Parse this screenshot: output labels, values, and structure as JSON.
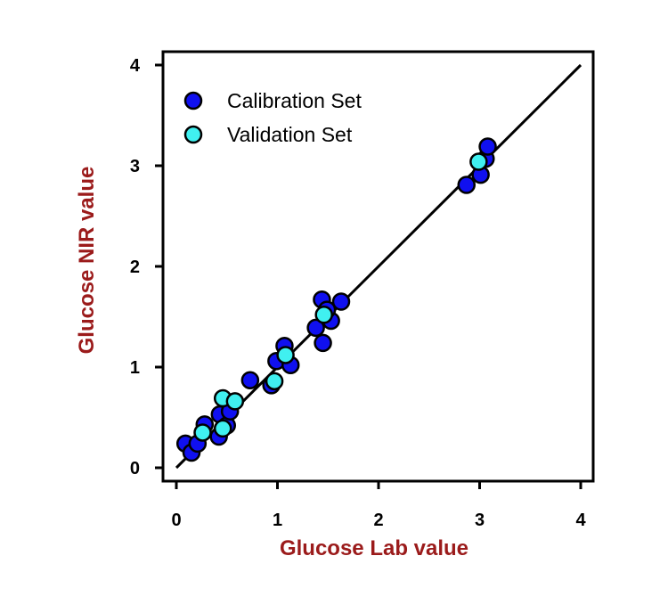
{
  "chart_data": {
    "type": "scatter",
    "xlabel": "Glucose Lab value",
    "ylabel": "Glucose NIR value",
    "xlim": [
      0,
      4
    ],
    "ylim": [
      0,
      4
    ],
    "xticks": [
      "0",
      "1",
      "2",
      "3",
      "4"
    ],
    "yticks": [
      "0",
      "1",
      "2",
      "3",
      "4"
    ],
    "grid": false,
    "legend_position": "top-left",
    "reference_line": {
      "from": [
        0,
        0
      ],
      "to": [
        4,
        4
      ]
    },
    "series": [
      {
        "name": "Calibration Set",
        "color": "#1010f0",
        "points": [
          [
            0.09,
            0.24
          ],
          [
            0.15,
            0.15
          ],
          [
            0.21,
            0.24
          ],
          [
            0.28,
            0.43
          ],
          [
            0.43,
            0.53
          ],
          [
            0.42,
            0.31
          ],
          [
            0.5,
            0.42
          ],
          [
            0.53,
            0.56
          ],
          [
            0.73,
            0.87
          ],
          [
            0.94,
            0.82
          ],
          [
            0.99,
            1.06
          ],
          [
            1.07,
            1.21
          ],
          [
            1.13,
            1.02
          ],
          [
            1.38,
            1.39
          ],
          [
            1.44,
            1.67
          ],
          [
            1.45,
            1.24
          ],
          [
            1.53,
            1.46
          ],
          [
            1.63,
            1.65
          ],
          [
            1.49,
            1.57
          ],
          [
            2.87,
            2.81
          ],
          [
            3.01,
            2.91
          ],
          [
            3.06,
            3.07
          ],
          [
            3.08,
            3.19
          ]
        ]
      },
      {
        "name": "Validation Set",
        "color": "#40f0f0",
        "points": [
          [
            0.26,
            0.35
          ],
          [
            0.46,
            0.69
          ],
          [
            0.46,
            0.39
          ],
          [
            0.58,
            0.66
          ],
          [
            0.97,
            0.86
          ],
          [
            1.08,
            1.12
          ],
          [
            1.46,
            1.52
          ],
          [
            2.99,
            3.04
          ]
        ]
      }
    ]
  }
}
